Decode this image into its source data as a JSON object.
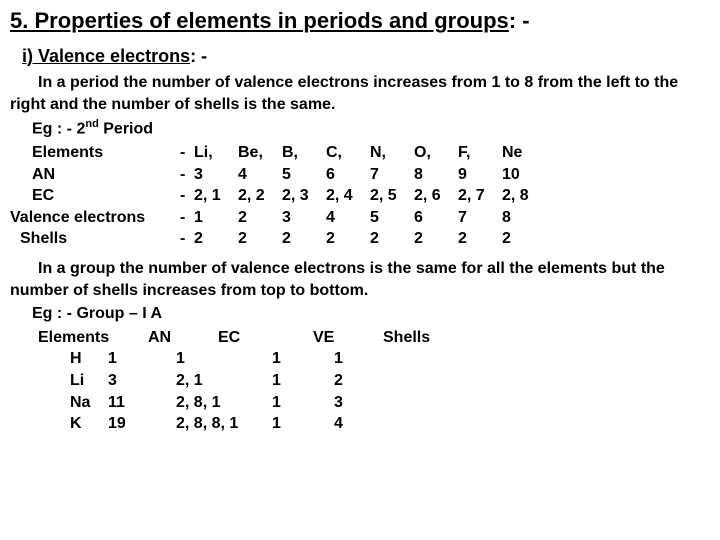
{
  "heading_prefix": "5. ",
  "heading_text": "Properties of elements in periods and groups",
  "heading_suffix": " : -",
  "sub_prefix": "i) ",
  "sub_text": "Valence electrons",
  "sub_suffix": " : -",
  "period_para": "In a period the number of valence electrons increases from 1 to 8 from the left to the right and the number of shells is the same.",
  "period_eg_label": "Eg : - 2",
  "period_eg_suffix": " Period",
  "period_table": {
    "labels": [
      "Elements",
      "AN",
      "EC",
      "Valence electrons",
      "Shells"
    ],
    "dash": "-",
    "rows": [
      [
        "Li,",
        "Be,",
        "B,",
        "C,",
        "N,",
        "O,",
        "F,",
        "Ne"
      ],
      [
        "3",
        "4",
        "5",
        "6",
        "7",
        "8",
        "9",
        "10"
      ],
      [
        "2, 1",
        "2, 2",
        "2, 3",
        "2, 4",
        "2, 5",
        "2, 6",
        "2, 7",
        "2, 8"
      ],
      [
        "1",
        "2",
        "3",
        "4",
        "5",
        "6",
        "7",
        "8"
      ],
      [
        "2",
        "2",
        "2",
        "2",
        "2",
        "2",
        "2",
        "2"
      ]
    ]
  },
  "group_para": "In a group the number of valence electrons is the same for all the elements but the number of shells increases from top to bottom.",
  "group_eg": "Eg : - Group – I A",
  "group_table": {
    "headers": [
      "Elements",
      "AN",
      "EC",
      "VE",
      "Shells"
    ],
    "rows": [
      [
        "H",
        "1",
        "1",
        "1",
        "1"
      ],
      [
        "Li",
        "3",
        "2, 1",
        "1",
        "2"
      ],
      [
        "Na",
        "11",
        "2, 8, 1",
        "1",
        "3"
      ],
      [
        "K",
        "19",
        "2, 8, 8, 1",
        "1",
        "4"
      ]
    ]
  }
}
